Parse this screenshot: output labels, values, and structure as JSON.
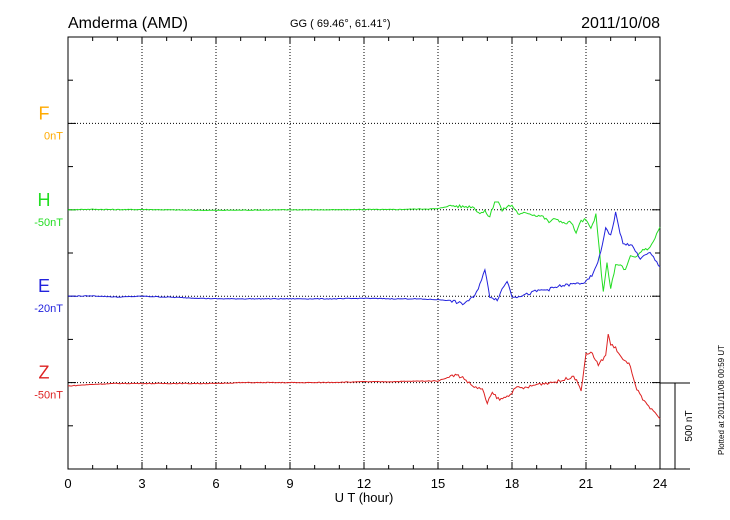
{
  "chart_data": {
    "type": "line",
    "title": "Amderma (AMD)",
    "coords": "GG ( 69.46°,  61.41°)",
    "date": "2011/10/08",
    "xlabel": "U T (hour)",
    "xlim": [
      0,
      24
    ],
    "xticks": [
      "0",
      "3",
      "6",
      "9",
      "12",
      "15",
      "18",
      "21",
      "24"
    ],
    "grid": true,
    "scale_label": "500 nT",
    "scale_nT": 500,
    "plotted_note": "Plotted at 2011/11/08 00:59 UT",
    "series": [
      {
        "name": "F",
        "offset_label": "0nT",
        "color": "#ffaa00",
        "x": [],
        "values": []
      },
      {
        "name": "H",
        "offset_label": "-50nT",
        "color": "#22dd22",
        "x": [
          0,
          0.5,
          1,
          2,
          3,
          4,
          5,
          6,
          7,
          8,
          9,
          10,
          11,
          12,
          13,
          14,
          15,
          15.5,
          16,
          16.4,
          16.7,
          16.9,
          17.1,
          17.3,
          17.45,
          17.6,
          17.8,
          18.0,
          18.3,
          18.6,
          18.9,
          19.2,
          19.5,
          19.8,
          20.1,
          20.4,
          20.6,
          20.8,
          21.0,
          21.2,
          21.4,
          21.55,
          21.7,
          21.85,
          22.0,
          22.2,
          22.4,
          22.6,
          22.8,
          23.0,
          23.3,
          23.6,
          24.0
        ],
        "values": [
          0,
          2,
          3,
          1,
          2,
          0,
          -2,
          -3,
          -2,
          -1,
          0,
          0,
          0,
          2,
          1,
          4,
          6,
          25,
          18,
          20,
          -20,
          -10,
          -40,
          50,
          45,
          -5,
          20,
          25,
          -30,
          -15,
          -30,
          -35,
          -70,
          -50,
          -80,
          -70,
          -140,
          -60,
          -60,
          -110,
          -30,
          -250,
          -480,
          -300,
          -460,
          -320,
          -320,
          -350,
          -270,
          -280,
          -230,
          -220,
          -100
        ]
      },
      {
        "name": "E",
        "offset_label": "-20nT",
        "color": "#2222dd",
        "x": [
          0,
          1,
          2,
          3,
          4,
          5,
          6,
          7,
          8,
          9,
          10,
          11,
          12,
          13,
          14,
          15,
          15.5,
          16.0,
          16.5,
          16.9,
          17.1,
          17.4,
          17.6,
          17.8,
          18.0,
          18.2,
          18.6,
          19.0,
          19.5,
          20.0,
          20.5,
          21.0,
          21.3,
          21.6,
          21.8,
          22.0,
          22.2,
          22.5,
          22.8,
          23.2,
          23.6,
          24.0
        ],
        "values": [
          0,
          2,
          -5,
          0,
          -5,
          -10,
          -15,
          -15,
          -15,
          -15,
          -15,
          -15,
          -12,
          -15,
          -15,
          -20,
          -25,
          -45,
          0,
          150,
          0,
          -20,
          40,
          90,
          0,
          0,
          10,
          30,
          40,
          60,
          70,
          80,
          130,
          250,
          400,
          350,
          480,
          300,
          300,
          220,
          250,
          170
        ]
      },
      {
        "name": "Z",
        "offset_label": "-50nT",
        "color": "#dd2222",
        "x": [
          0,
          1,
          2,
          3,
          4,
          5,
          6,
          7,
          8,
          9,
          10,
          11,
          12,
          13,
          14,
          15,
          15.7,
          16.0,
          16.4,
          16.8,
          17.0,
          17.2,
          17.5,
          17.8,
          18.2,
          18.6,
          19.0,
          19.5,
          20.0,
          20.5,
          20.8,
          21.0,
          21.2,
          21.5,
          21.8,
          21.9,
          22.0,
          22.2,
          22.5,
          22.8,
          23.0,
          23.3,
          23.6,
          24.0
        ],
        "values": [
          -20,
          -10,
          -5,
          -5,
          -5,
          -5,
          -5,
          0,
          0,
          0,
          0,
          2,
          5,
          5,
          8,
          10,
          45,
          30,
          -20,
          -40,
          -120,
          -60,
          -100,
          -80,
          -30,
          -30,
          -10,
          0,
          10,
          40,
          -40,
          160,
          180,
          100,
          160,
          280,
          220,
          200,
          130,
          100,
          -20,
          -100,
          -150,
          -210
        ]
      }
    ]
  }
}
